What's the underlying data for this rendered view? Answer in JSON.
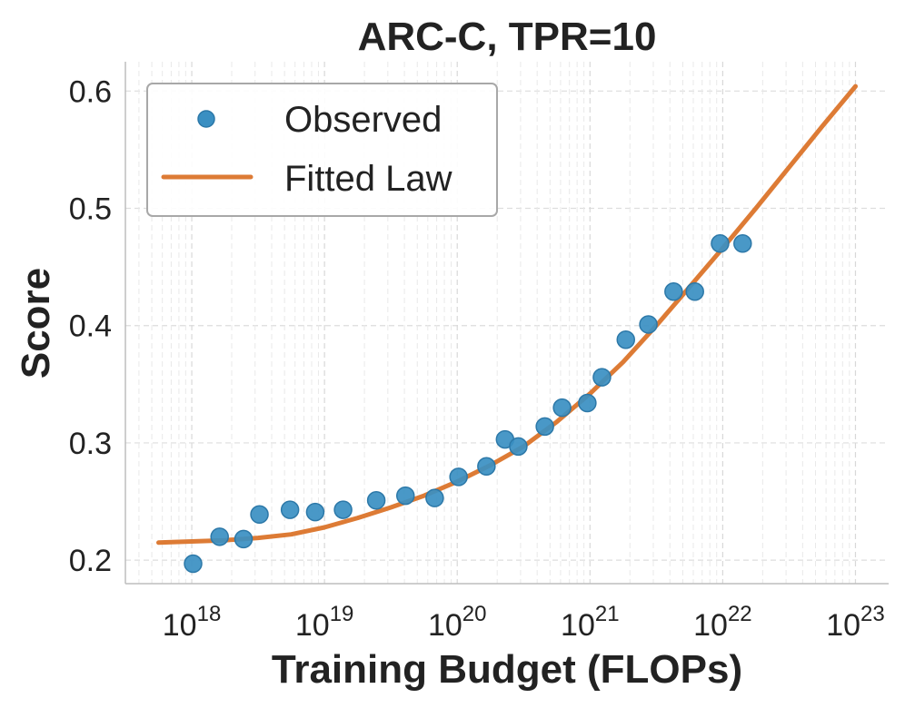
{
  "chart_data": {
    "type": "scatter",
    "title": "ARC-C, TPR=10",
    "xlabel": "Training Budget (FLOPs)",
    "ylabel": "Score",
    "xscale": "log",
    "xlim_log10": [
      17.5,
      23.25
    ],
    "ylim": [
      0.18,
      0.625
    ],
    "x_ticks": [
      {
        "exp": 18,
        "base": "10",
        "sup": "18"
      },
      {
        "exp": 19,
        "base": "10",
        "sup": "19"
      },
      {
        "exp": 20,
        "base": "10",
        "sup": "20"
      },
      {
        "exp": 21,
        "base": "10",
        "sup": "21"
      },
      {
        "exp": 22,
        "base": "10",
        "sup": "22"
      },
      {
        "exp": 23,
        "base": "10",
        "sup": "23"
      }
    ],
    "y_ticks": [
      {
        "value": 0.2,
        "label": "0.2"
      },
      {
        "value": 0.3,
        "label": "0.3"
      },
      {
        "value": 0.4,
        "label": "0.4"
      },
      {
        "value": 0.5,
        "label": "0.5"
      },
      {
        "value": 0.6,
        "label": "0.6"
      }
    ],
    "grid": true,
    "legend": {
      "position": "top-left",
      "entries": [
        {
          "label": "Observed",
          "kind": "marker",
          "color": "#3a8fc2"
        },
        {
          "label": "Fitted Law",
          "kind": "line",
          "color": "#dd7b35"
        }
      ]
    },
    "series": [
      {
        "name": "Observed",
        "kind": "scatter",
        "color": "#3a8fc2",
        "points": [
          {
            "x_log10": 18.01,
            "y": 0.197
          },
          {
            "x_log10": 18.21,
            "y": 0.22
          },
          {
            "x_log10": 18.39,
            "y": 0.218
          },
          {
            "x_log10": 18.51,
            "y": 0.239
          },
          {
            "x_log10": 18.74,
            "y": 0.243
          },
          {
            "x_log10": 18.93,
            "y": 0.241
          },
          {
            "x_log10": 19.14,
            "y": 0.243
          },
          {
            "x_log10": 19.39,
            "y": 0.251
          },
          {
            "x_log10": 19.61,
            "y": 0.255
          },
          {
            "x_log10": 19.83,
            "y": 0.253
          },
          {
            "x_log10": 20.01,
            "y": 0.271
          },
          {
            "x_log10": 20.22,
            "y": 0.28
          },
          {
            "x_log10": 20.36,
            "y": 0.303
          },
          {
            "x_log10": 20.46,
            "y": 0.297
          },
          {
            "x_log10": 20.66,
            "y": 0.314
          },
          {
            "x_log10": 20.79,
            "y": 0.33
          },
          {
            "x_log10": 20.98,
            "y": 0.334
          },
          {
            "x_log10": 21.09,
            "y": 0.356
          },
          {
            "x_log10": 21.27,
            "y": 0.388
          },
          {
            "x_log10": 21.44,
            "y": 0.401
          },
          {
            "x_log10": 21.63,
            "y": 0.429
          },
          {
            "x_log10": 21.79,
            "y": 0.429
          },
          {
            "x_log10": 21.98,
            "y": 0.47
          },
          {
            "x_log10": 22.15,
            "y": 0.47
          }
        ]
      },
      {
        "name": "Fitted Law",
        "kind": "line",
        "color": "#dd7b35",
        "points": [
          {
            "x_log10": 17.75,
            "y": 0.215
          },
          {
            "x_log10": 18.0,
            "y": 0.216
          },
          {
            "x_log10": 18.25,
            "y": 0.217
          },
          {
            "x_log10": 18.5,
            "y": 0.219
          },
          {
            "x_log10": 18.75,
            "y": 0.222
          },
          {
            "x_log10": 19.0,
            "y": 0.228
          },
          {
            "x_log10": 19.25,
            "y": 0.236
          },
          {
            "x_log10": 19.5,
            "y": 0.245
          },
          {
            "x_log10": 19.75,
            "y": 0.255
          },
          {
            "x_log10": 20.0,
            "y": 0.267
          },
          {
            "x_log10": 20.25,
            "y": 0.281
          },
          {
            "x_log10": 20.5,
            "y": 0.297
          },
          {
            "x_log10": 20.75,
            "y": 0.318
          },
          {
            "x_log10": 21.0,
            "y": 0.342
          },
          {
            "x_log10": 21.25,
            "y": 0.369
          },
          {
            "x_log10": 21.5,
            "y": 0.4
          },
          {
            "x_log10": 21.75,
            "y": 0.433
          },
          {
            "x_log10": 22.0,
            "y": 0.466
          },
          {
            "x_log10": 22.25,
            "y": 0.5
          },
          {
            "x_log10": 22.5,
            "y": 0.535
          },
          {
            "x_log10": 22.75,
            "y": 0.57
          },
          {
            "x_log10": 23.0,
            "y": 0.604
          }
        ]
      }
    ]
  }
}
